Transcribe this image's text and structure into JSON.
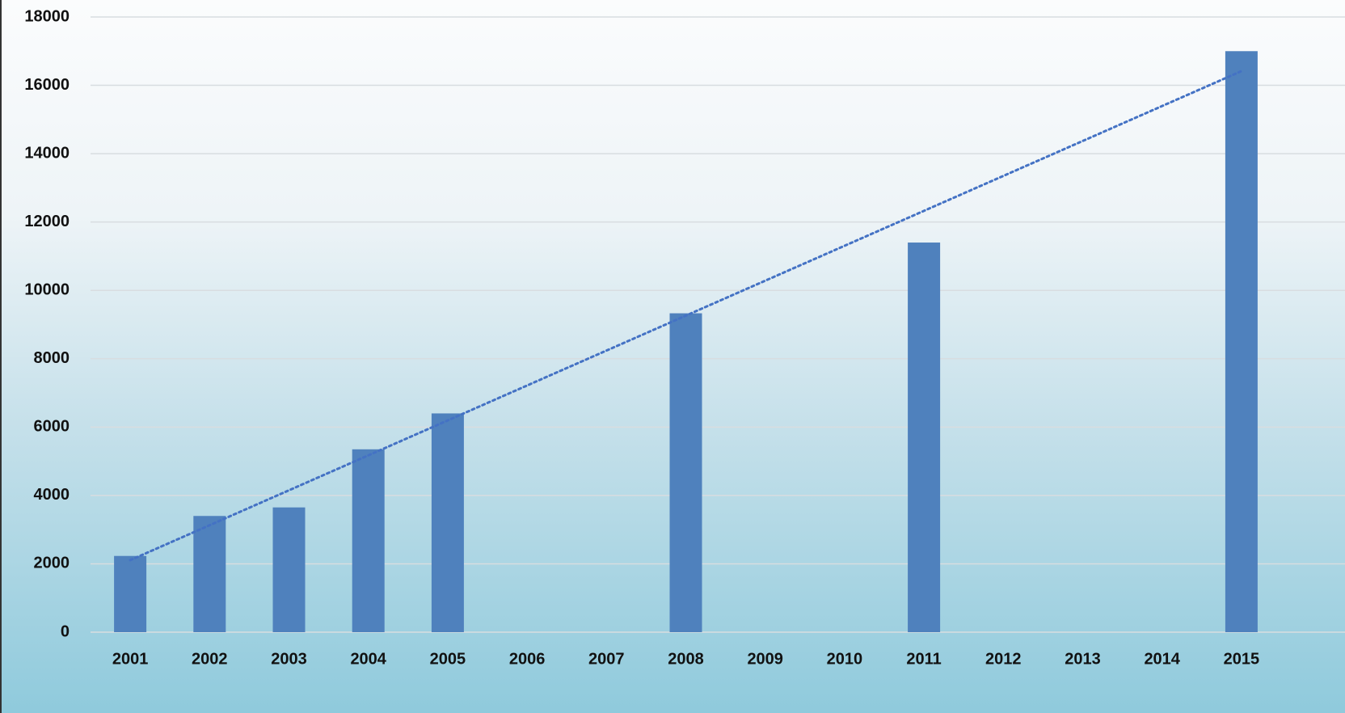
{
  "chart_data": {
    "type": "bar",
    "categories": [
      "2001",
      "2002",
      "2003",
      "2004",
      "2005",
      "2006",
      "2007",
      "2008",
      "2009",
      "2010",
      "2011",
      "2012",
      "2013",
      "2014",
      "2015"
    ],
    "values": [
      2230,
      3400,
      3650,
      5350,
      6400,
      null,
      null,
      9330,
      null,
      null,
      11400,
      null,
      null,
      null,
      17000
    ],
    "color": "#4f81bd",
    "ylim": [
      0,
      18000
    ],
    "yticks": [
      0,
      2000,
      4000,
      6000,
      8000,
      10000,
      12000,
      14000,
      16000,
      18000
    ],
    "grid": true,
    "trendline": "linear",
    "trendline_color": "#4472c4"
  }
}
